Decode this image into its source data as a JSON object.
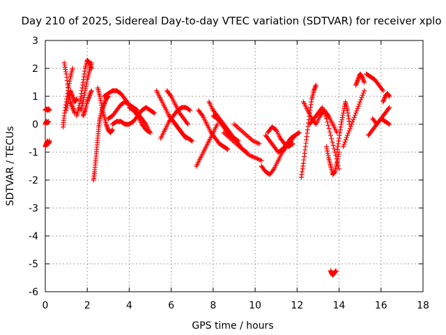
{
  "chart_data": {
    "type": "scatter",
    "title": "Day 210 of 2025, Sidereal Day-to-day VTEC variation (SDTVAR) for receiver xplo",
    "xlabel": "GPS time / hours",
    "ylabel": "SDTVAR / TECUs",
    "xlim": [
      0,
      18
    ],
    "ylim": [
      -6,
      3
    ],
    "xticks": [
      "0",
      "2",
      "4",
      "6",
      "8",
      "10",
      "12",
      "14",
      "16",
      "18"
    ],
    "yticks": [
      "-6",
      "-5",
      "-4",
      "-3",
      "-2",
      "-1",
      "0",
      "1",
      "2",
      "3"
    ],
    "grid": true,
    "marker": "plus",
    "color": "#ff0000",
    "series": [
      {
        "name": "SDTVAR",
        "tracks": [
          {
            "x": [
              0.0,
              0.05,
              0.1,
              0.15,
              0.2
            ],
            "y": [
              -0.8,
              -0.7,
              -0.6,
              -0.7,
              -0.6
            ]
          },
          {
            "x": [
              0.0,
              0.05,
              0.1,
              0.15,
              0.2
            ],
            "y": [
              0.5,
              0.55,
              0.5,
              0.55,
              0.5
            ]
          },
          {
            "x": [
              0.0,
              0.05,
              0.1,
              0.15
            ],
            "y": [
              0.0,
              0.1,
              0.05,
              0.1
            ]
          },
          {
            "x": [
              0.85,
              0.9,
              1.0,
              1.1,
              1.2,
              1.3
            ],
            "y": [
              -0.1,
              0.3,
              0.8,
              1.3,
              1.7,
              2.0
            ]
          },
          {
            "x": [
              0.9,
              1.0,
              1.1,
              1.2,
              1.3,
              1.4
            ],
            "y": [
              2.2,
              1.8,
              1.2,
              0.8,
              0.6,
              0.4
            ]
          },
          {
            "x": [
              1.0,
              1.1,
              1.2,
              1.3,
              1.4,
              1.5
            ],
            "y": [
              0.5,
              0.9,
              1.2,
              1.0,
              0.8,
              0.9
            ]
          },
          {
            "x": [
              1.5,
              1.6,
              1.7,
              1.8,
              1.9,
              2.0,
              2.1,
              2.2
            ],
            "y": [
              0.3,
              0.6,
              1.0,
              1.5,
              2.0,
              2.3,
              2.2,
              2.0
            ]
          },
          {
            "x": [
              1.7,
              1.8,
              1.9,
              2.0,
              2.1,
              2.2
            ],
            "y": [
              0.5,
              0.8,
              1.2,
              1.6,
              1.9,
              2.2
            ]
          },
          {
            "x": [
              1.8,
              1.9,
              2.0,
              2.1,
              2.2
            ],
            "y": [
              0.3,
              0.5,
              0.8,
              1.0,
              1.2
            ]
          },
          {
            "x": [
              2.3,
              2.35,
              2.4,
              2.45,
              2.5,
              2.55,
              2.6,
              2.7,
              2.8,
              2.9,
              3.0
            ],
            "y": [
              -2.0,
              -1.7,
              -1.3,
              -0.9,
              -0.5,
              -0.1,
              0.2,
              0.5,
              0.7,
              0.9,
              1.0
            ]
          },
          {
            "x": [
              2.5,
              2.6,
              2.7,
              2.8,
              2.9,
              3.0,
              3.1,
              3.2
            ],
            "y": [
              1.3,
              1.0,
              0.6,
              0.3,
              0.0,
              -0.2,
              -0.3,
              -0.2
            ]
          },
          {
            "x": [
              2.8,
              3.0,
              3.2,
              3.4,
              3.6,
              3.8,
              4.0,
              4.2,
              4.4
            ],
            "y": [
              1.0,
              1.1,
              1.2,
              1.2,
              1.1,
              0.9,
              0.7,
              0.6,
              0.5
            ]
          },
          {
            "x": [
              3.0,
              3.2,
              3.4,
              3.6,
              3.8,
              4.0,
              4.2,
              4.4,
              4.6,
              4.8,
              5.0
            ],
            "y": [
              0.2,
              0.3,
              0.5,
              0.7,
              0.8,
              0.7,
              0.5,
              0.3,
              0.0,
              -0.2,
              -0.3
            ]
          },
          {
            "x": [
              3.2,
              3.4,
              3.6,
              3.8,
              4.0,
              4.2,
              4.4,
              4.6,
              4.8,
              5.0,
              5.2
            ],
            "y": [
              0.0,
              0.1,
              0.1,
              0.0,
              0.0,
              0.1,
              0.3,
              0.5,
              0.6,
              0.5,
              0.4
            ]
          },
          {
            "x": [
              4.0,
              4.2,
              4.4,
              4.6,
              4.8,
              5.0
            ],
            "y": [
              0.6,
              0.5,
              0.4,
              0.2,
              0.0,
              -0.3
            ]
          },
          {
            "x": [
              5.3,
              5.5,
              5.7,
              5.9,
              6.1,
              6.3,
              6.5,
              6.7
            ],
            "y": [
              1.2,
              0.9,
              0.6,
              0.3,
              0.1,
              -0.1,
              -0.3,
              -0.5
            ]
          },
          {
            "x": [
              5.5,
              5.7,
              5.9,
              6.1,
              6.3,
              6.5,
              6.7,
              6.9
            ],
            "y": [
              -0.5,
              -0.2,
              0.1,
              0.3,
              0.5,
              0.6,
              0.6,
              0.5
            ]
          },
          {
            "x": [
              5.8,
              6.0,
              6.2,
              6.4,
              6.6,
              6.8
            ],
            "y": [
              1.2,
              1.0,
              0.7,
              0.4,
              0.2,
              0.0
            ]
          },
          {
            "x": [
              6.0,
              6.2,
              6.4,
              6.6,
              6.8,
              7.0
            ],
            "y": [
              0.2,
              0.0,
              -0.2,
              -0.4,
              -0.5,
              -0.6
            ]
          },
          {
            "x": [
              7.2,
              7.4,
              7.6,
              7.8,
              8.0,
              8.2
            ],
            "y": [
              -1.5,
              -1.2,
              -0.9,
              -0.6,
              -0.3,
              0.0
            ]
          },
          {
            "x": [
              7.3,
              7.5,
              7.7,
              7.9,
              8.1,
              8.3,
              8.5,
              8.7
            ],
            "y": [
              0.5,
              0.3,
              0.0,
              -0.3,
              -0.5,
              -0.7,
              -0.8,
              -0.9
            ]
          },
          {
            "x": [
              7.8,
              8.0,
              8.2,
              8.4,
              8.6,
              8.8,
              9.0,
              9.2
            ],
            "y": [
              0.8,
              0.5,
              0.3,
              0.1,
              -0.1,
              -0.3,
              -0.5,
              -0.6
            ]
          },
          {
            "x": [
              8.0,
              8.2,
              8.4,
              8.6,
              8.8,
              9.0,
              9.2,
              9.4,
              9.6
            ],
            "y": [
              0.3,
              0.2,
              0.0,
              -0.2,
              -0.4,
              -0.5,
              -0.7,
              -0.9,
              -1.0
            ]
          },
          {
            "x": [
              8.5,
              8.8,
              9.1,
              9.4,
              9.7,
              10.0,
              10.3
            ],
            "y": [
              -0.3,
              -0.5,
              -0.7,
              -0.9,
              -1.1,
              -1.2,
              -1.3
            ]
          },
          {
            "x": [
              9.0,
              9.3,
              9.6,
              9.9,
              10.2
            ],
            "y": [
              0.0,
              -0.2,
              -0.4,
              -0.6,
              -0.7
            ]
          },
          {
            "x": [
              10.3,
              10.5,
              10.7,
              10.9,
              11.1,
              11.3,
              11.5,
              11.7,
              11.9
            ],
            "y": [
              -1.5,
              -1.7,
              -1.8,
              -1.6,
              -1.3,
              -1.0,
              -0.8,
              -0.6,
              -0.4
            ]
          },
          {
            "x": [
              10.5,
              10.7,
              10.9,
              11.1,
              11.3,
              11.5,
              11.7,
              11.9,
              12.1
            ],
            "y": [
              -0.4,
              -0.6,
              -0.8,
              -1.0,
              -0.9,
              -0.7,
              -0.5,
              -0.4,
              -0.3
            ]
          },
          {
            "x": [
              10.6,
              10.8,
              11.0,
              11.2,
              11.4,
              11.6,
              11.8
            ],
            "y": [
              -0.3,
              -0.1,
              -0.2,
              -0.5,
              -0.7,
              -0.8,
              -0.7
            ]
          },
          {
            "x": [
              12.2,
              12.3,
              12.4,
              12.5,
              12.6,
              12.7,
              12.8,
              12.9
            ],
            "y": [
              -1.9,
              -1.4,
              -0.8,
              -0.2,
              0.4,
              0.9,
              1.2,
              1.4
            ]
          },
          {
            "x": [
              12.3,
              12.5,
              12.7,
              12.9,
              13.1,
              13.3,
              13.5,
              13.7,
              13.9
            ],
            "y": [
              0.8,
              0.5,
              0.2,
              0.0,
              0.3,
              0.5,
              0.3,
              0.0,
              -0.3
            ]
          },
          {
            "x": [
              12.6,
              12.8,
              13.0,
              13.2,
              13.4,
              13.6,
              13.8,
              14.0
            ],
            "y": [
              0.0,
              0.2,
              0.4,
              0.6,
              0.2,
              -0.4,
              -1.0,
              -1.6
            ]
          },
          {
            "x": [
              13.4,
              13.5,
              13.6,
              13.7,
              13.8,
              13.9,
              14.0
            ],
            "y": [
              -0.8,
              -1.2,
              -1.5,
              -1.8,
              -1.7,
              -1.4,
              -1.0
            ]
          },
          {
            "x": [
              13.9,
              14.0,
              14.1,
              14.2,
              14.3,
              14.4,
              14.5
            ],
            "y": [
              -1.0,
              -0.5,
              0.0,
              0.4,
              0.8,
              0.5,
              0.0
            ]
          },
          {
            "x": [
              14.2,
              14.4,
              14.6,
              14.8,
              15.0,
              15.2
            ],
            "y": [
              -0.8,
              -0.4,
              0.0,
              0.4,
              0.8,
              1.2
            ]
          },
          {
            "x": [
              14.8,
              14.9,
              15.0,
              15.1,
              15.2
            ],
            "y": [
              1.4,
              1.6,
              1.8,
              1.7,
              1.5
            ]
          },
          {
            "x": [
              15.3,
              15.5,
              15.7,
              15.9,
              16.1
            ],
            "y": [
              1.8,
              1.7,
              1.6,
              1.4,
              1.2
            ]
          },
          {
            "x": [
              15.4,
              15.6,
              15.8,
              16.0,
              16.2,
              16.4
            ],
            "y": [
              -0.4,
              -0.2,
              0.0,
              0.2,
              0.4,
              0.6
            ]
          },
          {
            "x": [
              15.6,
              15.8,
              16.0,
              16.2,
              16.4
            ],
            "y": [
              0.2,
              0.0,
              0.2,
              0.1,
              0.0
            ]
          },
          {
            "x": [
              16.1,
              16.2,
              16.3,
              16.4
            ],
            "y": [
              0.8,
              1.0,
              1.1,
              1.0
            ]
          },
          {
            "x": [
              13.6,
              13.65,
              13.7,
              13.75,
              13.8,
              13.85
            ],
            "y": [
              -5.25,
              -5.35,
              -5.4,
              -5.35,
              -5.3,
              -5.25
            ]
          }
        ]
      }
    ]
  }
}
